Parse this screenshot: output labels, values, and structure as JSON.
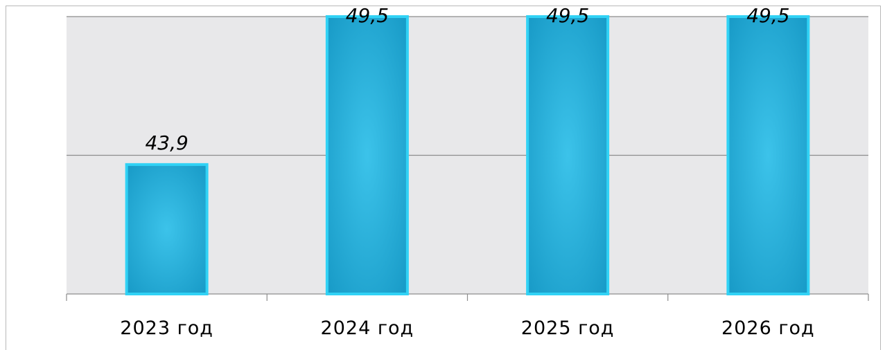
{
  "chart_data": {
    "type": "bar",
    "categories": [
      "2023 год",
      "2024 год",
      "2025 год",
      "2026 год"
    ],
    "values": [
      43.9,
      49.5,
      49.5,
      49.5
    ],
    "data_labels": [
      "43,9",
      "49,5",
      "49,5",
      "49,5"
    ],
    "title": "",
    "xlabel": "",
    "ylabel": "",
    "ylim": [
      39,
      49.5
    ],
    "grid": true,
    "legend": "none",
    "colors": {
      "bar_center": "#3cc3ea",
      "bar_edge": "#1597c4",
      "bar_border": "#31d2f5",
      "plot_background": "#e8e8ea",
      "gridline": "#8c8c8c",
      "axis": "#8c8c8c"
    }
  }
}
